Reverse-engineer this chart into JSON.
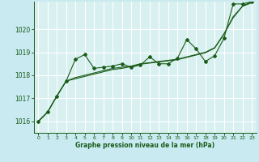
{
  "bg_color": "#c8eaf0",
  "plot_bg_color": "#d8f0f0",
  "grid_color": "#ffffff",
  "line_color": "#1a5c1a",
  "marker_color": "#1a5c1a",
  "xlabel": "Graphe pression niveau de la mer (hPa)",
  "xlabel_color": "#1a5c1a",
  "tick_color": "#1a5c1a",
  "ylim": [
    1015.5,
    1021.2
  ],
  "xlim": [
    -0.5,
    23.5
  ],
  "yticks": [
    1016,
    1017,
    1018,
    1019,
    1020
  ],
  "xticks": [
    0,
    1,
    2,
    3,
    4,
    5,
    6,
    7,
    8,
    9,
    10,
    11,
    12,
    13,
    14,
    15,
    16,
    17,
    18,
    19,
    20,
    21,
    22,
    23
  ],
  "series_nomark1_x": [
    0,
    1,
    2,
    3,
    4,
    5,
    6,
    7,
    8,
    9,
    10,
    11,
    12,
    13,
    14,
    15,
    16,
    17,
    18,
    19,
    20,
    21,
    22,
    23
  ],
  "series_nomark1_y": [
    1016.0,
    1016.4,
    1017.1,
    1017.75,
    1017.9,
    1018.0,
    1018.1,
    1018.2,
    1018.3,
    1018.35,
    1018.4,
    1018.5,
    1018.55,
    1018.6,
    1018.65,
    1018.7,
    1018.8,
    1018.9,
    1019.0,
    1019.2,
    1019.8,
    1020.5,
    1021.0,
    1021.2
  ],
  "series_nomark2_x": [
    0,
    1,
    2,
    3,
    4,
    5,
    6,
    7,
    8,
    9,
    10,
    11,
    12,
    13,
    14,
    15,
    16,
    17,
    18,
    19,
    20,
    21,
    22,
    23
  ],
  "series_nomark2_y": [
    1016.0,
    1016.4,
    1017.1,
    1017.75,
    1017.85,
    1017.95,
    1018.05,
    1018.15,
    1018.25,
    1018.3,
    1018.38,
    1018.48,
    1018.53,
    1018.58,
    1018.63,
    1018.68,
    1018.78,
    1018.88,
    1018.98,
    1019.18,
    1019.78,
    1020.55,
    1021.0,
    1021.15
  ],
  "series_mark_x": [
    0,
    1,
    2,
    3,
    4,
    5,
    6,
    7,
    8,
    9,
    10,
    11,
    12,
    13,
    14,
    15,
    16,
    17,
    18,
    19,
    20,
    21,
    22,
    23
  ],
  "series_mark_y": [
    1016.0,
    1016.4,
    1017.1,
    1017.75,
    1018.7,
    1018.9,
    1018.3,
    1018.35,
    1018.4,
    1018.5,
    1018.35,
    1018.45,
    1018.8,
    1018.5,
    1018.5,
    1018.75,
    1019.55,
    1019.15,
    1018.6,
    1018.85,
    1019.6,
    1021.1,
    1021.1,
    1021.2
  ]
}
